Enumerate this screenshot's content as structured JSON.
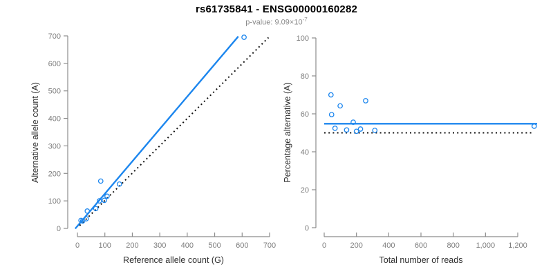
{
  "header": {
    "title": "rs61735841 - ENSG00000160282",
    "subtitle_base": "p-value: 9.09×10",
    "subtitle_exponent": "-7"
  },
  "colors": {
    "accent_blue": "#1c86ee",
    "dotted_black": "#111111",
    "axis_gray": "#8c8c8c",
    "tick_label_gray": "#7d7d7d",
    "axis_title_color": "#2e2e2e"
  },
  "chart_data": [
    {
      "type": "scatter",
      "name": "allele-counts-scatter",
      "xlabel": "Reference allele count (G)",
      "ylabel": "Alternative allele count (A)",
      "xlim": [
        0,
        700
      ],
      "ylim": [
        0,
        700
      ],
      "grid": false,
      "legend": null,
      "xtick_values": [
        0,
        100,
        200,
        300,
        400,
        500,
        600,
        700
      ],
      "xtick_labels": [
        "0",
        "100",
        "200",
        "300",
        "400",
        "500",
        "600",
        "700"
      ],
      "ytick_values": [
        0,
        100,
        200,
        300,
        400,
        500,
        600,
        700
      ],
      "ytick_labels": [
        "0",
        "100",
        "200",
        "300",
        "400",
        "500",
        "600",
        "700"
      ],
      "points": [
        [
          13,
          29
        ],
        [
          19,
          27
        ],
        [
          32,
          35
        ],
        [
          36,
          63
        ],
        [
          67,
          72
        ],
        [
          80,
          100
        ],
        [
          85,
          172
        ],
        [
          98,
          102
        ],
        [
          108,
          117
        ],
        [
          153,
          161
        ],
        [
          607,
          695
        ]
      ],
      "lines": [
        {
          "name": "regression-line",
          "style": "solid",
          "color_key": "accent_blue",
          "width": 2.4,
          "pts": [
            [
              -8,
              -1
            ],
            [
              586,
              698
            ]
          ]
        },
        {
          "name": "identity-line",
          "style": "dotted",
          "color_key": "dotted_black",
          "width": 2.0,
          "pts": [
            [
              8,
              10
            ],
            [
              696,
              694
            ]
          ]
        }
      ]
    },
    {
      "type": "scatter",
      "name": "percentage-vs-reads-scatter",
      "xlabel": "Total number of reads",
      "ylabel": "Percentage alternative (A)",
      "xlim": [
        0,
        1200
      ],
      "ylim": [
        0,
        100
      ],
      "grid": false,
      "legend": null,
      "xtick_values": [
        0,
        200,
        400,
        600,
        800,
        1000,
        1200
      ],
      "xtick_labels": [
        "0",
        "200",
        "400",
        "600",
        "800",
        "1,000",
        "1,200"
      ],
      "ytick_values": [
        0,
        20,
        40,
        60,
        80,
        100
      ],
      "ytick_labels": [
        "0",
        "20",
        "40",
        "60",
        "80",
        "100"
      ],
      "points": [
        [
          42,
          70.0
        ],
        [
          46,
          59.6
        ],
        [
          67,
          52.4
        ],
        [
          99,
          64.2
        ],
        [
          139,
          51.5
        ],
        [
          180,
          55.6
        ],
        [
          200,
          50.8
        ],
        [
          225,
          52.0
        ],
        [
          257,
          66.9
        ],
        [
          314,
          51.3
        ],
        [
          1302,
          53.5
        ]
      ],
      "lines": [
        {
          "name": "mean-percentage-line",
          "style": "solid",
          "color_key": "accent_blue",
          "width": 2.4,
          "pts": [
            [
              0,
              54.8
            ],
            [
              1320,
              54.8
            ]
          ]
        },
        {
          "name": "fifty-percent-line",
          "style": "dotted",
          "color_key": "dotted_black",
          "width": 2.0,
          "pts": [
            [
              0,
              50
            ],
            [
              1290,
              50
            ]
          ]
        }
      ]
    }
  ]
}
